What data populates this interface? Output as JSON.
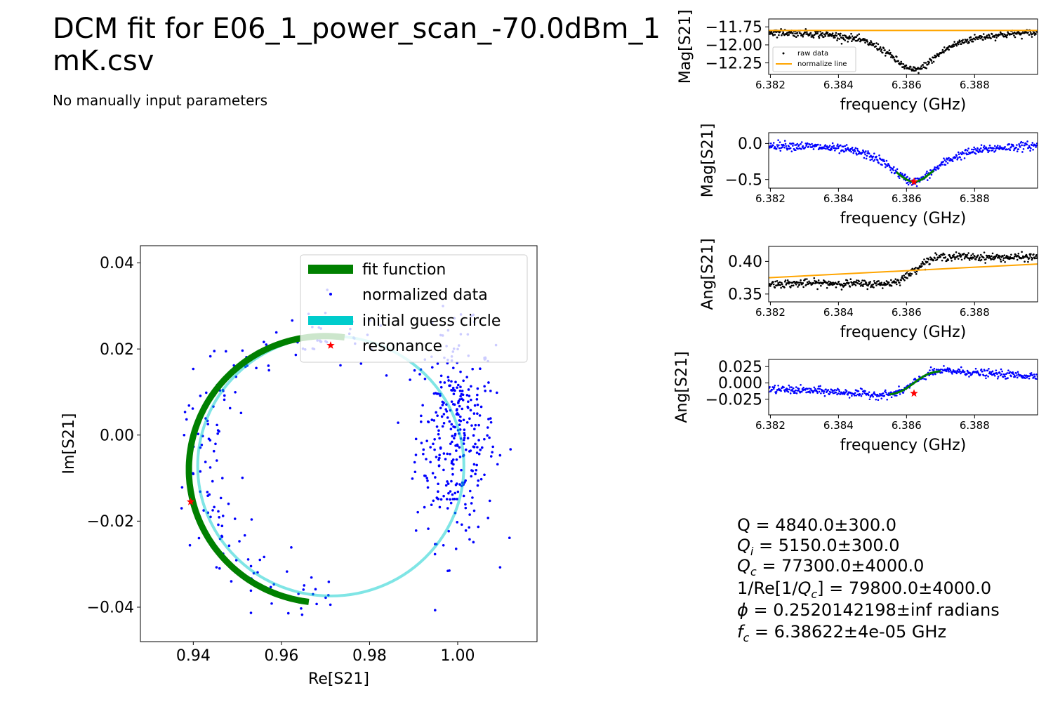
{
  "page": {
    "title_line1": "DCM fit for E06_1_power_scan_-70.0dBm_1",
    "title_line2": "mK.csv",
    "subtitle": "No manually input parameters"
  },
  "results": {
    "lines": [
      "Q = 4840.0±300.0",
      "Q_i = 5150.0±300.0",
      "Q_c = 77300.0±4000.0",
      "1/Re[1/Q_c] = 79800.0±4000.0",
      "ϕ = 0.2520142198±inf radians",
      "f_c = 6.38622±4e-05 GHz"
    ]
  },
  "colors": {
    "fit": "#008000",
    "guess": "#00cccc",
    "data": "#0000ff",
    "raw": "#000000",
    "normalize_line": "#ffa500",
    "resonance": "#ff0000"
  },
  "chart_data": [
    {
      "id": "iq",
      "type": "scatter",
      "xlabel": "Re[S21]",
      "ylabel": "Im[S21]",
      "xlim": [
        0.928,
        1.018
      ],
      "ylim": [
        -0.048,
        0.044
      ],
      "xticks": [
        0.94,
        0.96,
        0.98,
        1.0
      ],
      "xtick_labels": [
        "0.94",
        "0.96",
        "0.98",
        "1.00"
      ],
      "yticks": [
        -0.04,
        -0.02,
        0.0,
        0.02,
        0.04
      ],
      "ytick_labels": [
        "−0.04",
        "−0.02",
        "0.00",
        "0.02",
        "0.04"
      ],
      "legend": {
        "placement": "top-right",
        "entries": [
          "fit function",
          "normalized data",
          "initial guess circle",
          "resonance"
        ]
      },
      "guess_circle": {
        "center": [
          0.9712,
          -0.0072
        ],
        "radius": 0.0302
      },
      "fit_circle": {
        "center": [
          0.97,
          -0.008
        ],
        "radius": 0.031,
        "arc_start_deg": -83,
        "arc_end_deg": 98
      },
      "resonance": [
        0.9394,
        -0.0155
      ],
      "data_cloud": {
        "center": [
          0.9995,
          0.0
        ],
        "spread": [
          0.0045,
          0.012
        ],
        "count": 330,
        "arc_count": 170,
        "arc_noise": 0.0035
      }
    },
    {
      "id": "raw_mag",
      "type": "line",
      "ylabel": "Mag[S21]",
      "xlabel": "frequency (GHz)",
      "xlim": [
        6.38195,
        6.38985
      ],
      "ylim": [
        -12.41,
        -11.64
      ],
      "xticks": [
        6.382,
        6.384,
        6.386,
        6.388
      ],
      "xtick_labels": [
        "6.382",
        "6.384",
        "6.386",
        "6.388"
      ],
      "yticks": [
        -11.75,
        -12.0,
        -12.25
      ],
      "ytick_labels": [
        "−11.75",
        "−12.00",
        "−12.25"
      ],
      "series": [
        {
          "name": "raw data",
          "shape": "dip",
          "baseline": -11.8,
          "depth": -0.55,
          "f0": 6.38622,
          "width": 0.0009,
          "noise": 0.025
        },
        {
          "name": "normalize line",
          "line": [
            [
              6.38195,
              -11.8
            ],
            [
              6.38985,
              -11.8
            ]
          ]
        }
      ],
      "legend": {
        "placement": "lower-left",
        "entries": [
          "raw data",
          "normalize line"
        ]
      }
    },
    {
      "id": "norm_mag",
      "type": "line",
      "ylabel": "Mag[S21]",
      "xlabel": "frequency (GHz)",
      "xlim": [
        6.38195,
        6.38985
      ],
      "ylim": [
        -0.62,
        0.15
      ],
      "xticks": [
        6.382,
        6.384,
        6.386,
        6.388
      ],
      "xtick_labels": [
        "6.382",
        "6.384",
        "6.386",
        "6.388"
      ],
      "yticks": [
        0.0,
        -0.5
      ],
      "ytick_labels": [
        "0.0",
        "−0.5"
      ],
      "series": [
        {
          "name": "normalized data",
          "shape": "dip",
          "baseline": 0.0,
          "depth": -0.53,
          "f0": 6.38622,
          "width": 0.0009,
          "noise": 0.03
        },
        {
          "name": "fit function",
          "shape": "dip",
          "baseline": 0.0,
          "depth": -0.53,
          "f0": 6.38622,
          "width": 0.0009,
          "range": [
            6.3857,
            6.3868
          ]
        }
      ],
      "resonance": [
        6.38622,
        -0.53
      ]
    },
    {
      "id": "raw_ang",
      "type": "line",
      "ylabel": "Ang[S21]",
      "xlabel": "frequency (GHz)",
      "xlim": [
        6.38195,
        6.38985
      ],
      "ylim": [
        0.338,
        0.423
      ],
      "xticks": [
        6.382,
        6.384,
        6.386,
        6.388
      ],
      "xtick_labels": [
        "6.382",
        "6.384",
        "6.386",
        "6.388"
      ],
      "yticks": [
        0.4,
        0.35
      ],
      "ytick_labels": [
        "0.40",
        "0.35"
      ],
      "series": [
        {
          "name": "raw data",
          "shape": "phase",
          "line_a": 0.375,
          "line_b": 0.396,
          "amp": 0.033,
          "f0": 6.38622,
          "width": 0.0009,
          "noise": 0.003
        },
        {
          "name": "normalize line",
          "line": [
            [
              6.38195,
              0.375
            ],
            [
              6.38985,
              0.396
            ]
          ]
        }
      ]
    },
    {
      "id": "norm_ang",
      "type": "line",
      "ylabel": "Ang[S21]",
      "xlabel": "frequency (GHz)",
      "xlim": [
        6.38195,
        6.38985
      ],
      "ylim": [
        -0.049,
        0.036
      ],
      "xticks": [
        6.382,
        6.384,
        6.386,
        6.388
      ],
      "xtick_labels": [
        "6.382",
        "6.384",
        "6.386",
        "6.388"
      ],
      "yticks": [
        0.025,
        0.0,
        -0.025
      ],
      "ytick_labels": [
        "0.025",
        "0.000",
        "−0.025"
      ],
      "series": [
        {
          "name": "normalized data",
          "shape": "phase",
          "line_a": 0.0,
          "line_b": 0.0,
          "amp": 0.033,
          "f0": 6.38622,
          "width": 0.0009,
          "noise": 0.003
        },
        {
          "name": "fit function",
          "shape": "phase",
          "line_a": 0.0,
          "line_b": 0.0,
          "amp": 0.033,
          "f0": 6.38622,
          "width": 0.0009,
          "range": [
            6.3855,
            6.387
          ]
        }
      ],
      "resonance": [
        6.38622,
        -0.016
      ]
    }
  ]
}
